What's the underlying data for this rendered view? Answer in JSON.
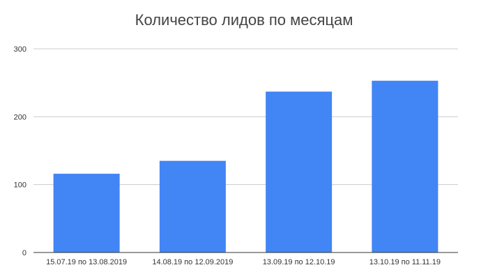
{
  "chart_data": {
    "type": "bar",
    "title": "Количество лидов по месяцам",
    "xlabel": "",
    "ylabel": "",
    "categories": [
      "15.07.19 по 13.08.2019",
      "14.08.19 по 12.09.2019",
      "13.09.19 по 12.10.19",
      "13.10.19 по 11.11.19"
    ],
    "values": [
      116,
      135,
      237,
      253
    ],
    "ylim": [
      0,
      300
    ],
    "yticks": [
      0,
      100,
      200,
      300
    ],
    "grid": true,
    "legend": "none",
    "bar_color": "#4285f4",
    "grid_color": "#cccccc",
    "axis_color": "#333333"
  }
}
